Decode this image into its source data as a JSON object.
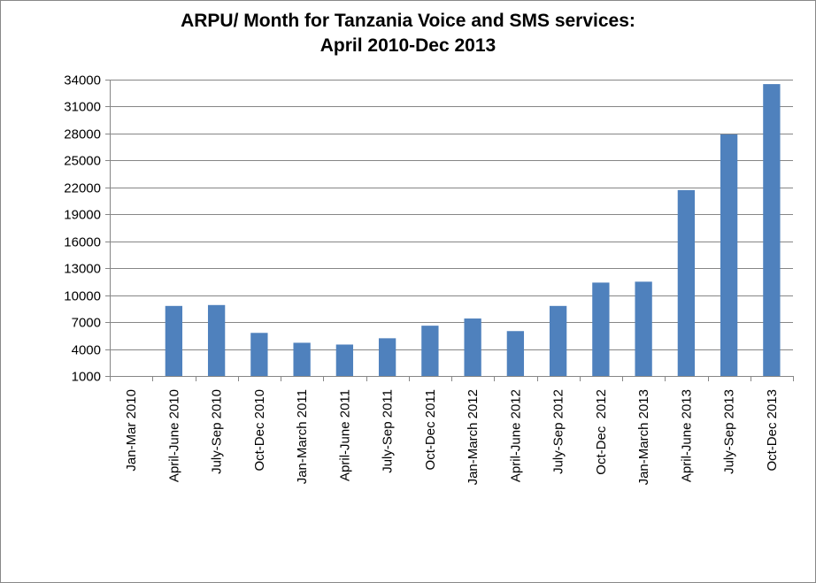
{
  "chart_data": {
    "type": "bar",
    "title": [
      "ARPU/ Month for Tanzania Voice and SMS services:",
      "April 2010-Dec 2013"
    ],
    "xlabel": "",
    "ylabel": "",
    "ylim": [
      1000,
      34000
    ],
    "yticks": [
      1000,
      4000,
      7000,
      10000,
      13000,
      16000,
      19000,
      22000,
      25000,
      28000,
      31000,
      34000
    ],
    "grid": true,
    "legend": "none",
    "categories": [
      "Jan-Mar 2010",
      "April-June 2010",
      "July-Sep 2010",
      "Oct-Dec 2010",
      "Jan-March 2011",
      "April-June 2011",
      "July-Sep 2011",
      "Oct-Dec 2011",
      "Jan-March 2012",
      "April-June 2012",
      "July-Sep 2012",
      "Oct-Dec  2012",
      "Jan-March 2013",
      "April-June 2013",
      "July-Sep 2013",
      "Oct-Dec 2013"
    ],
    "values": [
      0,
      8800,
      8900,
      5800,
      4700,
      4500,
      5200,
      6600,
      7400,
      6000,
      8800,
      11400,
      11500,
      21700,
      27900,
      33500
    ],
    "colors": {
      "bar": "#4F81BD",
      "grid": "#868686",
      "axis": "#868686"
    }
  }
}
